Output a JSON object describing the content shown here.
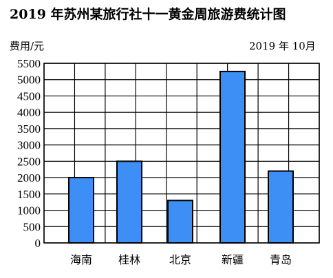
{
  "chart_data": {
    "type": "bar",
    "title": "2019 年苏州某旅行社十一黄金周旅游费统计图",
    "ylabel": "费用/元",
    "date_note": "2019 年  10月",
    "categories": [
      "海南",
      "桂林",
      "北京",
      "新疆",
      "青岛"
    ],
    "values": [
      2000,
      2500,
      1300,
      5250,
      2200
    ],
    "ylim": [
      0,
      5500
    ],
    "ytick_step": 500,
    "grid": true,
    "bar_color": "#3d8ef5",
    "bar_edge": "#000000"
  }
}
